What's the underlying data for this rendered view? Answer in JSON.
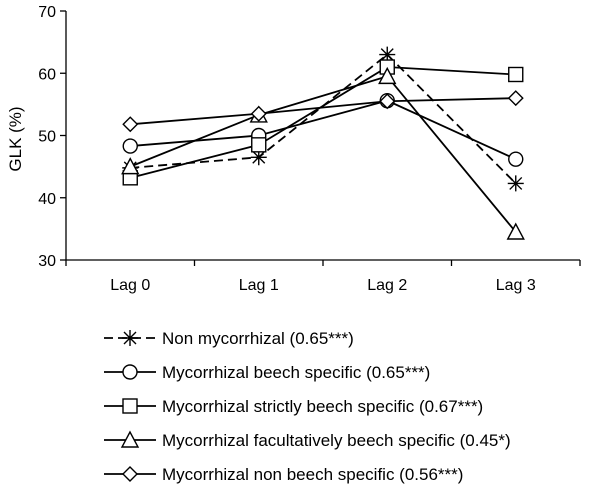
{
  "chart_data": {
    "type": "line",
    "categories": [
      "Lag 0",
      "Lag 1",
      "Lag 2",
      "Lag 3"
    ],
    "ylabel": "GLK (%)",
    "xlabel": "",
    "ylim": [
      30,
      70
    ],
    "yticks": [
      30,
      40,
      50,
      60,
      70
    ],
    "grid": false,
    "legend_position": "bottom",
    "series": [
      {
        "name": "Non mycorrhizal (0.65***)",
        "marker": "asterisk",
        "line_style": "dashed",
        "values": [
          44.8,
          46.5,
          63.0,
          42.3
        ]
      },
      {
        "name": "Mycorrhizal beech specific (0.65***)",
        "marker": "circle",
        "line_style": "solid",
        "values": [
          48.3,
          50.0,
          55.6,
          46.2
        ]
      },
      {
        "name": "Mycorrhizal strictly beech specific (0.67***)",
        "marker": "square",
        "line_style": "solid",
        "values": [
          43.2,
          48.5,
          61.0,
          59.8
        ]
      },
      {
        "name": "Mycorrhizal facultatively beech specific (0.45*)",
        "marker": "triangle",
        "line_style": "solid",
        "values": [
          45.0,
          53.3,
          59.5,
          34.5
        ]
      },
      {
        "name": "Mycorrhizal non beech specific (0.56***)",
        "marker": "diamond",
        "line_style": "solid",
        "values": [
          51.8,
          53.5,
          55.5,
          56.0
        ]
      }
    ]
  }
}
